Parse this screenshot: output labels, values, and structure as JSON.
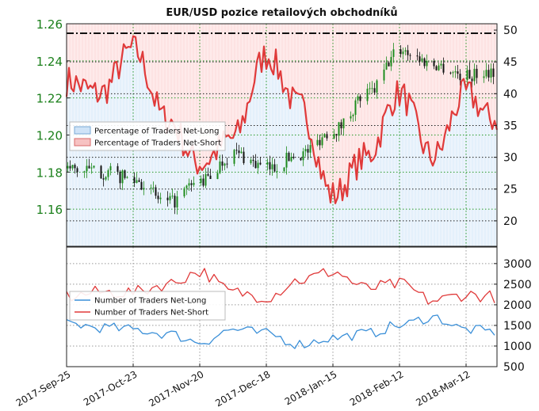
{
  "chart_data": [
    {
      "type": "candlestick",
      "title": "EUR/USD pozice retailových obchodníků",
      "x_tick_labels": [
        "2017-Sep-25",
        "2017-Oct-23",
        "2017-Nov-20",
        "2017-Dec-18",
        "2018-Jan-15",
        "2018-Feb-12",
        "2018-Mar-12"
      ],
      "x_range": [
        "2017-Sep-25",
        "2018-Mar-25"
      ],
      "y_left": {
        "range": [
          1.14,
          1.26
        ],
        "ticks": [
          1.16,
          1.18,
          1.2,
          1.22,
          1.24,
          1.26
        ],
        "color": "#1a7f1a"
      },
      "y_right": {
        "range": [
          16,
          51
        ],
        "ticks": [
          20,
          25,
          30,
          35,
          40,
          45,
          50
        ]
      },
      "reference_line": 49.5,
      "legend": {
        "position": "center-left",
        "entries": [
          "Percentage of Traders Net-Long",
          "Percentage of Traders Net-Short"
        ]
      },
      "series": [
        {
          "name": "EUR/USD",
          "axis": "left",
          "kind": "price",
          "x": [
            "2017-Sep-25",
            "2017-Oct-09",
            "2017-Oct-23",
            "2017-Nov-06",
            "2017-Nov-20",
            "2017-Dec-04",
            "2017-Dec-18",
            "2018-Jan-01",
            "2018-Jan-15",
            "2018-Jan-29",
            "2018-Feb-12",
            "2018-Feb-26",
            "2018-Mar-12",
            "2018-Mar-23"
          ],
          "values": [
            1.182,
            1.18,
            1.176,
            1.163,
            1.175,
            1.19,
            1.182,
            1.19,
            1.203,
            1.222,
            1.246,
            1.238,
            1.232,
            1.235
          ]
        },
        {
          "name": "Percentage of Traders Net-Short",
          "axis": "right",
          "kind": "percent",
          "x": [
            "2017-Sep-25",
            "2017-Oct-09",
            "2017-Oct-23",
            "2017-Nov-06",
            "2017-Nov-20",
            "2017-Dec-04",
            "2017-Dec-18",
            "2018-Jan-01",
            "2018-Jan-15",
            "2018-Jan-29",
            "2018-Feb-12",
            "2018-Feb-26",
            "2018-Mar-12",
            "2018-Mar-23"
          ],
          "values": [
            42,
            40,
            47,
            36,
            29,
            33,
            46,
            38,
            24,
            30,
            40,
            30,
            40,
            36
          ]
        }
      ]
    },
    {
      "type": "line",
      "x_tick_labels": [
        "2017-Sep-25",
        "2017-Oct-23",
        "2017-Nov-20",
        "2017-Dec-18",
        "2018-Jan-15",
        "2018-Feb-12",
        "2018-Mar-12"
      ],
      "x_range": [
        "2017-Sep-25",
        "2018-Mar-25"
      ],
      "y_right": {
        "range": [
          500,
          3400
        ],
        "ticks": [
          500,
          1000,
          1500,
          2000,
          2500,
          3000
        ]
      },
      "legend": {
        "position": "center-left",
        "entries": [
          "Number of Traders Net-Long",
          "Number of Traders Net-Short"
        ]
      },
      "series": [
        {
          "name": "Number of Traders Net-Long",
          "color": "#3a8fd8",
          "x": [
            "2017-Sep-25",
            "2017-Oct-09",
            "2017-Oct-23",
            "2017-Nov-06",
            "2017-Nov-20",
            "2017-Dec-04",
            "2017-Dec-18",
            "2018-Jan-01",
            "2018-Jan-15",
            "2018-Jan-29",
            "2018-Feb-12",
            "2018-Feb-26",
            "2018-Mar-12",
            "2018-Mar-23"
          ],
          "values": [
            1550,
            1450,
            1400,
            1300,
            1100,
            1400,
            1300,
            1050,
            1200,
            1300,
            1500,
            1700,
            1400,
            1350
          ]
        },
        {
          "name": "Number of Traders Net-Short",
          "color": "#e03a3a",
          "x": [
            "2017-Sep-25",
            "2017-Oct-09",
            "2017-Oct-23",
            "2017-Nov-06",
            "2017-Nov-20",
            "2017-Dec-04",
            "2017-Dec-18",
            "2018-Jan-01",
            "2018-Jan-15",
            "2018-Jan-29",
            "2018-Feb-12",
            "2018-Feb-26",
            "2018-Mar-12",
            "2018-Mar-23"
          ],
          "values": [
            2200,
            2300,
            2300,
            2500,
            2800,
            2300,
            2200,
            2600,
            2800,
            2400,
            2500,
            2100,
            2250,
            2200
          ]
        }
      ]
    }
  ]
}
